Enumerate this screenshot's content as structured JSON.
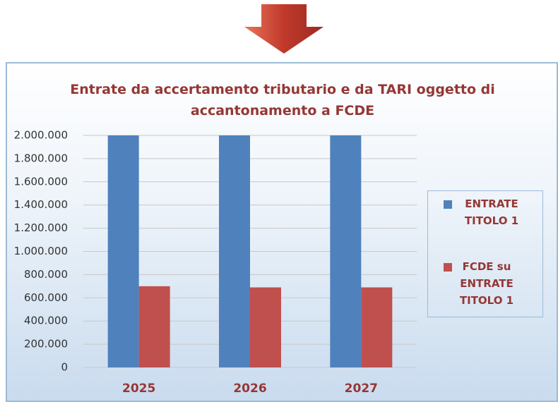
{
  "chart_data": {
    "type": "bar",
    "title": "Entrate da accertamento tributario e da TARI oggetto di accantonamento a FCDE",
    "categories": [
      "2025",
      "2026",
      "2027"
    ],
    "series": [
      {
        "name": "ENTRATE TITOLO 1",
        "color": "#4f81bd",
        "values": [
          2000000,
          2000000,
          2000000
        ]
      },
      {
        "name": "FCDE su ENTRATE TITOLO 1",
        "color": "#c0504d",
        "values": [
          700000,
          690000,
          690000
        ]
      }
    ],
    "ylim": [
      0,
      2000000
    ],
    "yticks": [
      0,
      {
        "value": 200000,
        "label": "200.000"
      },
      {
        "value": 400000,
        "label": "400.000"
      },
      {
        "value": 600000,
        "label": "600.000"
      },
      {
        "value": 800000,
        "label": "800.000"
      },
      {
        "value": 1000000,
        "label": "1.000.000"
      },
      {
        "value": 1200000,
        "label": "1.200.000"
      },
      {
        "value": 1400000,
        "label": "1.400.000"
      },
      {
        "value": 1600000,
        "label": "1.600.000"
      },
      {
        "value": 1800000,
        "label": "1.800.000"
      },
      {
        "value": 2000000,
        "label": "2.000.000"
      }
    ],
    "grid": true,
    "legend": "right"
  }
}
